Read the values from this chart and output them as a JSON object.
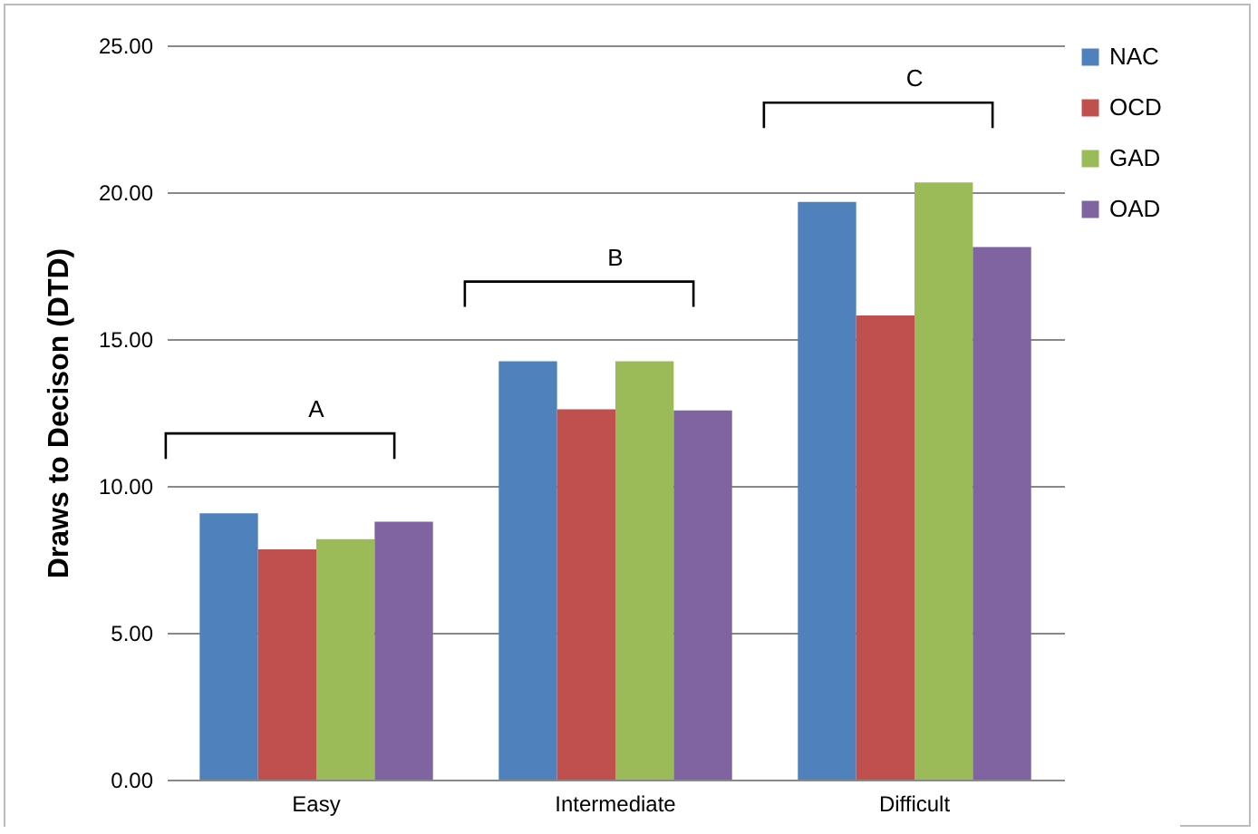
{
  "chart_data": {
    "type": "bar",
    "ylabel": "Draws to Decison (DTD)",
    "categories": [
      "Easy",
      "Intermediate",
      "Difficult"
    ],
    "series": [
      {
        "name": "NAC",
        "color": "#4f81bd",
        "values": [
          9.07,
          14.24,
          19.67
        ]
      },
      {
        "name": "OCD",
        "color": "#c0504d",
        "values": [
          7.84,
          12.61,
          15.8
        ]
      },
      {
        "name": "GAD",
        "color": "#9bbb59",
        "values": [
          8.19,
          14.24,
          20.33
        ]
      },
      {
        "name": "OAD",
        "color": "#8064a2",
        "values": [
          8.78,
          12.57,
          18.13
        ]
      }
    ],
    "ylim": [
      0,
      25
    ],
    "yticks": [
      {
        "value": 0,
        "label": "0.00"
      },
      {
        "value": 5,
        "label": "5.00"
      },
      {
        "value": 10,
        "label": "10.00"
      },
      {
        "value": 15,
        "label": "15.00"
      },
      {
        "value": 20,
        "label": "20.00"
      },
      {
        "value": 25,
        "label": "25.00"
      }
    ],
    "grid": "y",
    "legend": "right",
    "annotations": [
      "A",
      "B",
      "C"
    ]
  }
}
